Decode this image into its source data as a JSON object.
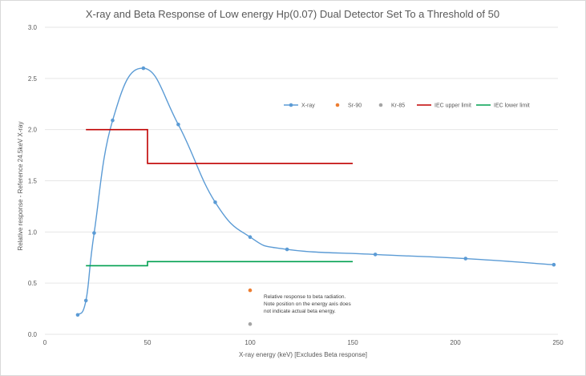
{
  "chart_data": {
    "type": "line",
    "title": "X-ray and Beta Response of Low energy Hp(0.07) Dual Detector Set To a Threshold of 50",
    "xlabel": "X-ray energy (keV)   [Excludes Beta response]",
    "ylabel": "Relative response - Reference 24.5keV X-ray",
    "xlim": [
      0,
      250
    ],
    "ylim": [
      0,
      3.0
    ],
    "xticks": [
      "0",
      "50",
      "100",
      "150",
      "200",
      "250"
    ],
    "yticks": [
      "0.0",
      "0.5",
      "1.0",
      "1.5",
      "2.0",
      "2.5",
      "3.0"
    ],
    "grid": "horizontal",
    "legend_position": "top-right",
    "series": [
      {
        "name": "X-ray",
        "color": "#5b9bd5",
        "style": "smooth-line-markers",
        "x": [
          16,
          20,
          24,
          33,
          48,
          65,
          83,
          100,
          118,
          161,
          205,
          248
        ],
        "y": [
          0.19,
          0.33,
          0.99,
          2.09,
          2.6,
          2.05,
          1.29,
          0.95,
          0.83,
          0.78,
          0.74,
          0.68
        ]
      },
      {
        "name": "Sr-90",
        "color": "#ed7d31",
        "style": "markers",
        "x": [
          100
        ],
        "y": [
          0.43
        ]
      },
      {
        "name": "Kr-85",
        "color": "#a5a5a5",
        "style": "markers",
        "x": [
          100
        ],
        "y": [
          0.1
        ]
      },
      {
        "name": "IEC upper limit",
        "color": "#c00000",
        "style": "step-line",
        "x": [
          20,
          50,
          50,
          150
        ],
        "y": [
          2.0,
          2.0,
          1.67,
          1.67
        ]
      },
      {
        "name": "IEC lower limit",
        "color": "#00a050",
        "style": "step-line",
        "x": [
          20,
          50,
          50,
          150
        ],
        "y": [
          0.67,
          0.67,
          0.71,
          0.71
        ]
      }
    ],
    "annotation": {
      "x": 100,
      "y": 0.38,
      "lines": [
        "Relative response to beta radiation.",
        "Note position on the energy axis does",
        "not indicate actual beta energy."
      ]
    }
  }
}
